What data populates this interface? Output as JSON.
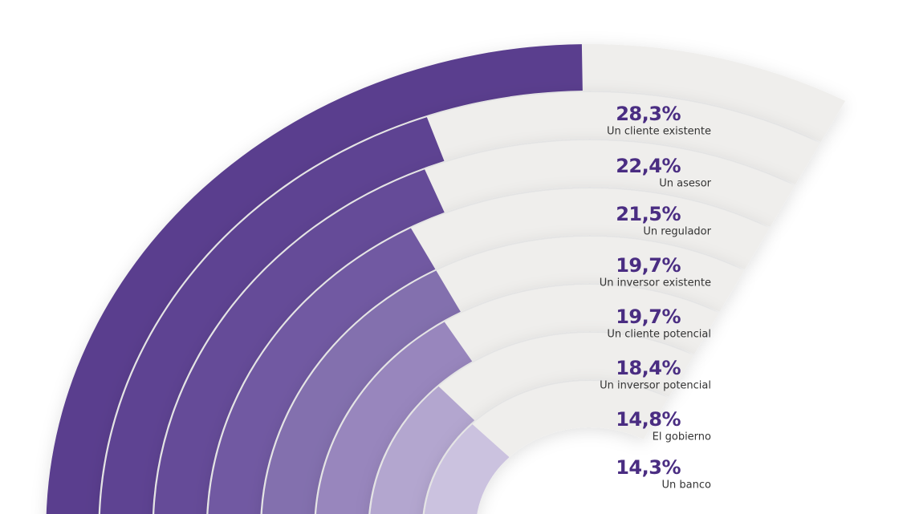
{
  "chart_data": {
    "type": "radial_bar",
    "categories": [
      "Un cliente existente",
      "Un asesor",
      "Un regulador",
      "Un inversor existente",
      "Un cliente potencial",
      "Un inversor potencial",
      "El gobierno",
      "Un banco"
    ],
    "values": [
      28.3,
      22.4,
      21.5,
      19.7,
      19.7,
      18.4,
      14.8,
      14.3
    ],
    "value_labels": [
      "28,3%",
      "22,4%",
      "21,5%",
      "19,7%",
      "19,7%",
      "18,4%",
      "14,8%",
      "14,3%"
    ],
    "colors": [
      "#5a3e8e",
      "#5e4392",
      "#654b98",
      "#7159a2",
      "#8370ae",
      "#9886bd",
      "#b3a6cf",
      "#cbc2df"
    ],
    "track_color": "#efeeec"
  }
}
